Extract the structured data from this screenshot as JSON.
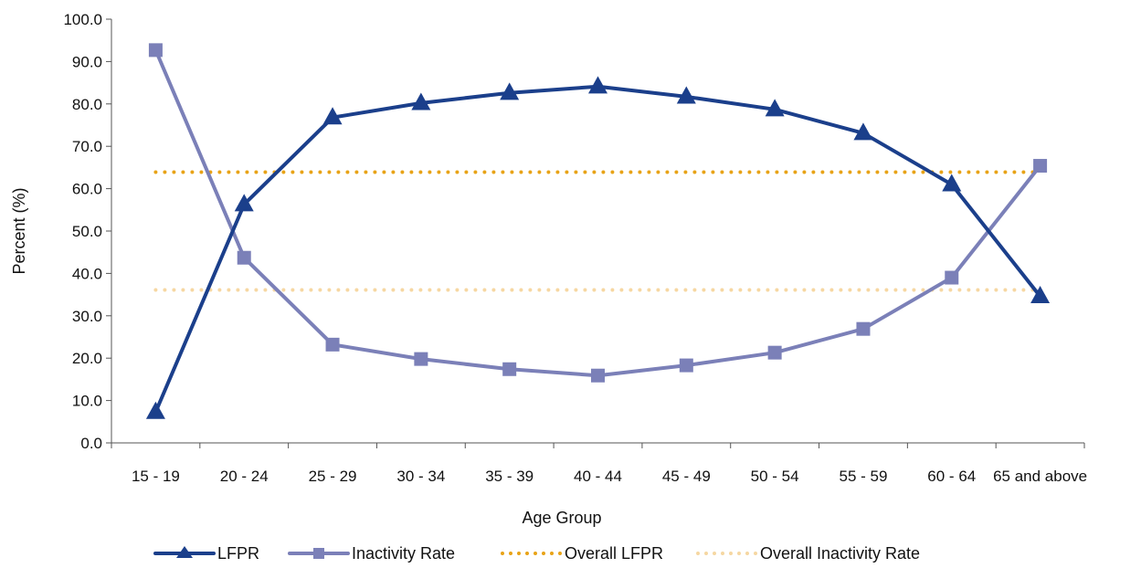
{
  "chart_data": {
    "type": "line",
    "title": "",
    "xlabel": "Age Group",
    "ylabel": "Percent (%)",
    "ylim": [
      0,
      100
    ],
    "yticks": [
      "0.0",
      "10.0",
      "20.0",
      "30.0",
      "40.0",
      "50.0",
      "60.0",
      "70.0",
      "80.0",
      "90.0",
      "100.0"
    ],
    "categories": [
      "15 - 19",
      "20 - 24",
      "25 - 29",
      "30 - 34",
      "35 - 39",
      "40 - 44",
      "45 - 49",
      "50 - 54",
      "55 - 59",
      "60 - 64",
      "65 and above"
    ],
    "grid": false,
    "legend_position": "bottom",
    "series": [
      {
        "name": "LFPR",
        "values": [
          7.3,
          56.3,
          76.8,
          80.2,
          82.6,
          84.1,
          81.7,
          78.7,
          73.1,
          61.0,
          34.6
        ],
        "color": "#1b3f8b",
        "marker": "triangle",
        "style": "solid"
      },
      {
        "name": "Inactivity Rate",
        "values": [
          92.7,
          43.7,
          23.2,
          19.8,
          17.4,
          15.9,
          18.3,
          21.3,
          26.9,
          39.0,
          65.4
        ],
        "color": "#7b80b8",
        "marker": "square",
        "style": "solid"
      },
      {
        "name": "Overall LFPR",
        "values": [
          63.9,
          63.9,
          63.9,
          63.9,
          63.9,
          63.9,
          63.9,
          63.9,
          63.9,
          63.9,
          63.9
        ],
        "color": "#e8a317",
        "marker": "none",
        "style": "dotted"
      },
      {
        "name": "Overall Inactivity Rate",
        "values": [
          36.1,
          36.1,
          36.1,
          36.1,
          36.1,
          36.1,
          36.1,
          36.1,
          36.1,
          36.1,
          36.1
        ],
        "color": "#f6d7a2",
        "marker": "none",
        "style": "dotted"
      }
    ]
  }
}
